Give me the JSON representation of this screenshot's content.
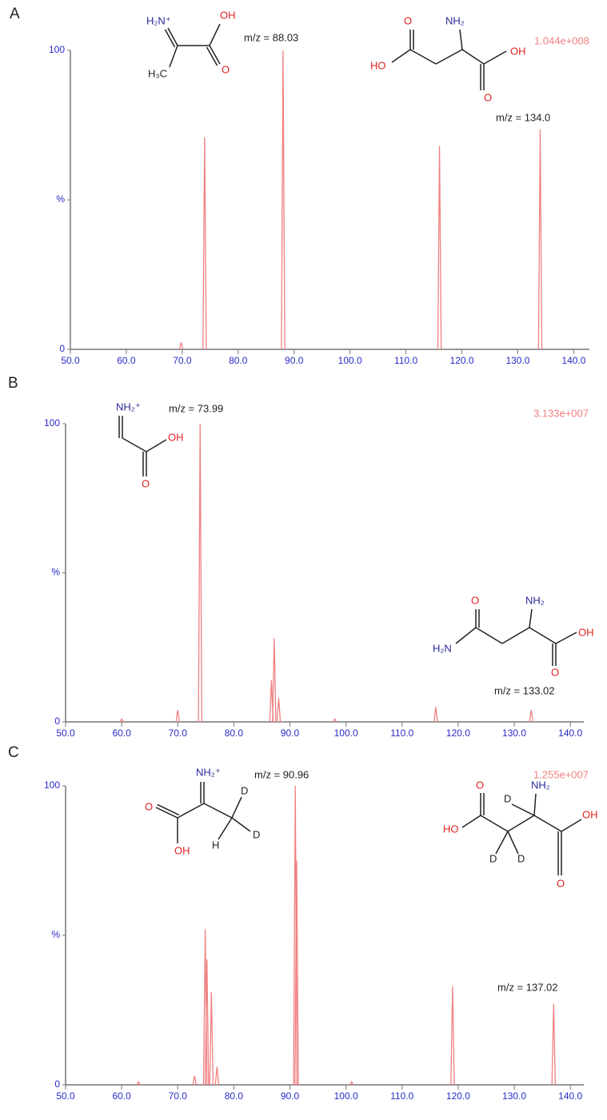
{
  "chart_data": [
    {
      "type": "spectrum",
      "panel_label": "A",
      "intensity": "1.044e+008",
      "annotations": [
        "m/z = 88.03",
        "m/z = 134.0"
      ],
      "structures": [
        [
          "H₂N⁺",
          "OH",
          "O",
          "H₃C"
        ],
        [
          "O",
          "NH₂",
          "HO",
          "OH",
          "O"
        ]
      ],
      "x": [
        69.8,
        74.0,
        88.03,
        116.0,
        134.0
      ],
      "values": [
        2.4,
        71,
        100,
        68,
        73.5
      ],
      "color": "#f08080",
      "xlim": [
        50,
        142.8
      ],
      "ylim": [
        0,
        100
      ],
      "xticks": [
        {
          "value": 50,
          "label": "50.0"
        },
        {
          "value": 60,
          "label": "60.0"
        },
        {
          "value": 70,
          "label": "70.0"
        },
        {
          "value": 80,
          "label": "80.0"
        },
        {
          "value": 90,
          "label": "90.0"
        },
        {
          "value": 100,
          "label": "100.0"
        },
        {
          "value": 110,
          "label": "110.0"
        },
        {
          "value": 120,
          "label": "120.0"
        },
        {
          "value": 130,
          "label": "130.0"
        },
        {
          "value": 140,
          "label": "140.0"
        }
      ],
      "yticks": [
        0,
        {
          "value": 50,
          "label": "%"
        },
        100
      ]
    },
    {
      "type": "spectrum",
      "panel_label": "B",
      "intensity": "3.133e+007",
      "annotations": [
        "m/z = 73.99",
        "m/z = 133.02"
      ],
      "structures": [
        [
          "NH₂⁺",
          "OH",
          "O"
        ],
        [
          "O",
          "NH₂",
          "H₂N",
          "OH",
          "O"
        ]
      ],
      "x": [
        60.0,
        70.0,
        73.99,
        86.7,
        87.2,
        88.0,
        98.0,
        116.0,
        133.02
      ],
      "values": [
        1,
        4,
        100,
        14,
        28,
        8,
        1,
        5,
        4
      ],
      "color": "#f08080",
      "xlim": [
        50,
        142.4
      ],
      "ylim": [
        0,
        100
      ],
      "xticks": [
        {
          "value": 50,
          "label": "50.0"
        },
        {
          "value": 60,
          "label": "60.0"
        },
        {
          "value": 70,
          "label": "70.0"
        },
        {
          "value": 80,
          "label": "80.0"
        },
        {
          "value": 90,
          "label": "90.0"
        },
        {
          "value": 100,
          "label": "100.0"
        },
        {
          "value": 110,
          "label": "110.0"
        },
        {
          "value": 120,
          "label": "120.0"
        },
        {
          "value": 130,
          "label": "130.0"
        },
        {
          "value": 140,
          "label": "140.0"
        }
      ],
      "yticks": [
        0,
        {
          "value": 50,
          "label": "%"
        },
        100
      ]
    },
    {
      "type": "spectrum",
      "panel_label": "C",
      "intensity": "1.255e+007",
      "annotations": [
        "m/z = 90.96",
        "m/z = 137.02"
      ],
      "structures": [
        [
          "NH₂⁺",
          "D",
          "D",
          "H",
          "O",
          "OH"
        ],
        [
          "O",
          "NH₂",
          "D",
          "HO",
          "D",
          "D",
          "OH",
          "O"
        ]
      ],
      "x": [
        63.0,
        73.0,
        74.9,
        75.2,
        76.0,
        77.0,
        90.96,
        91.2,
        101.0,
        119.0,
        137.02
      ],
      "values": [
        1,
        3,
        52,
        42,
        31,
        6,
        100,
        75,
        1,
        33,
        27
      ],
      "color": "#f08080",
      "xlim": [
        50,
        142.4
      ],
      "ylim": [
        0,
        100
      ],
      "xticks": [
        {
          "value": 50,
          "label": "50.0"
        },
        {
          "value": 60,
          "label": "60.0"
        },
        {
          "value": 70,
          "label": "70.0"
        },
        {
          "value": 80,
          "label": "80.0"
        },
        {
          "value": 90,
          "label": "90.0"
        },
        {
          "value": 100,
          "label": "100.0"
        },
        {
          "value": 110,
          "label": "110.0"
        },
        {
          "value": 120,
          "label": "120.0"
        },
        {
          "value": 130,
          "label": "130.0"
        },
        {
          "value": 140,
          "label": "140.0"
        }
      ],
      "yticks": [
        0,
        {
          "value": 50,
          "label": "%"
        },
        100
      ]
    }
  ]
}
